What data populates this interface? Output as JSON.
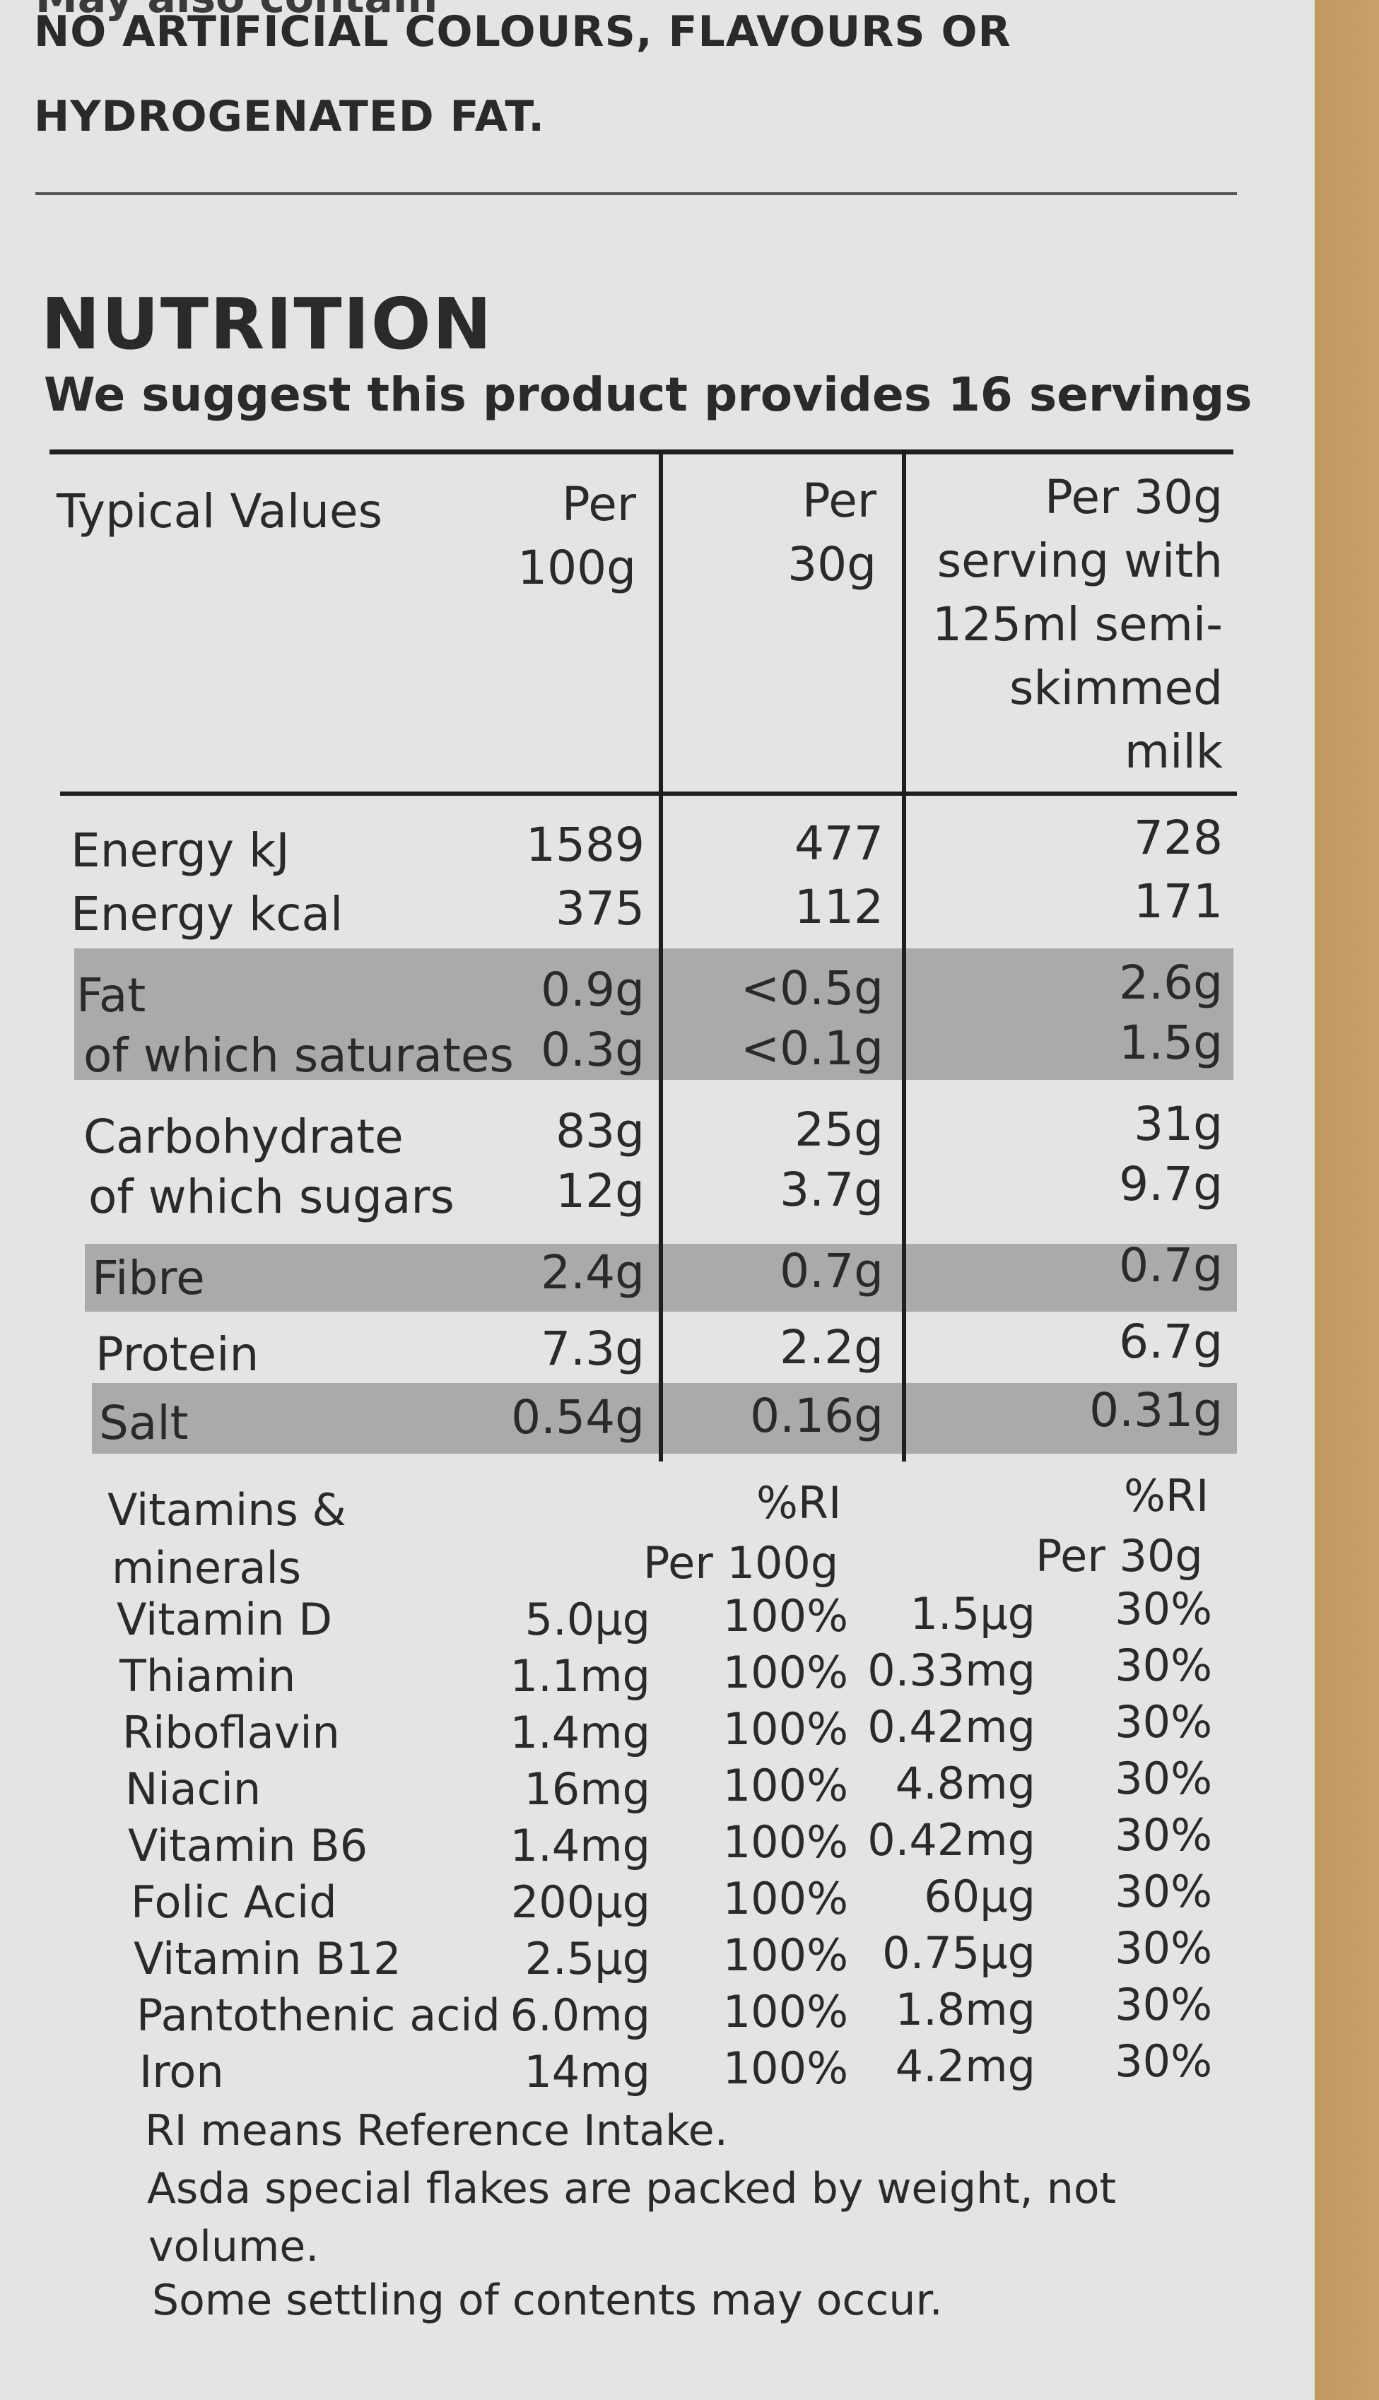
{
  "header": {
    "cut_text": "May also contain",
    "warning_line1": "NO ARTIFICIAL COLOURS, FLAVOURS OR",
    "warning_line2": "HYDROGENATED FAT."
  },
  "nutrition": {
    "title": "NUTRITION",
    "servings": "We suggest this product provides 16 servings",
    "headers": {
      "typical": "Typical Values",
      "per100_1": "Per",
      "per100_2": "100g",
      "per30_1": "Per",
      "per30_2": "30g",
      "milk_1": "Per 30g",
      "milk_2": "serving with",
      "milk_3": "125ml semi-",
      "milk_4": "skimmed",
      "milk_5": "milk"
    },
    "rows": [
      {
        "label": "Energy kJ",
        "per100": "1589",
        "per30": "477",
        "milk": "728"
      },
      {
        "label": "Energy kcal",
        "per100": "375",
        "per30": "112",
        "milk": "171"
      },
      {
        "label": "Fat",
        "per100": "0.9g",
        "per30": "<0.5g",
        "milk": "2.6g"
      },
      {
        "label": "of which saturates",
        "per100": "0.3g",
        "per30": "<0.1g",
        "milk": "1.5g"
      },
      {
        "label": "Carbohydrate",
        "per100": "83g",
        "per30": "25g",
        "milk": "31g"
      },
      {
        "label": "of which sugars",
        "per100": "12g",
        "per30": "3.7g",
        "milk": "9.7g"
      },
      {
        "label": "Fibre",
        "per100": "2.4g",
        "per30": "0.7g",
        "milk": "0.7g"
      },
      {
        "label": "Protein",
        "per100": "7.3g",
        "per30": "2.2g",
        "milk": "6.7g"
      },
      {
        "label": "Salt",
        "per100": "0.54g",
        "per30": "0.16g",
        "milk": "0.31g"
      }
    ],
    "vitamins_header": {
      "label_1": "Vitamins &",
      "label_2": "minerals",
      "ri_1": "%RI",
      "per100": "Per 100g",
      "ri_2": "%RI",
      "per30": "Per 30g"
    },
    "vitamins": [
      {
        "name": "Vitamin D",
        "per100": "5.0µg",
        "ri100": "100%",
        "per30": "1.5µg",
        "ri30": "30%"
      },
      {
        "name": "Thiamin",
        "per100": "1.1mg",
        "ri100": "100%",
        "per30": "0.33mg",
        "ri30": "30%"
      },
      {
        "name": "Riboflavin",
        "per100": "1.4mg",
        "ri100": "100%",
        "per30": "0.42mg",
        "ri30": "30%"
      },
      {
        "name": "Niacin",
        "per100": "16mg",
        "ri100": "100%",
        "per30": "4.8mg",
        "ri30": "30%"
      },
      {
        "name": "Vitamin B6",
        "per100": "1.4mg",
        "ri100": "100%",
        "per30": "0.42mg",
        "ri30": "30%"
      },
      {
        "name": "Folic Acid",
        "per100": "200µg",
        "ri100": "100%",
        "per30": "60µg",
        "ri30": "30%"
      },
      {
        "name": "Vitamin B12",
        "per100": "2.5µg",
        "ri100": "100%",
        "per30": "0.75µg",
        "ri30": "30%"
      },
      {
        "name": "Pantothenic acid",
        "per100": "6.0mg",
        "ri100": "100%",
        "per30": "1.8mg",
        "ri30": "30%"
      },
      {
        "name": "Iron",
        "per100": "14mg",
        "ri100": "100%",
        "per30": "4.2mg",
        "ri30": "30%"
      }
    ],
    "footer": {
      "ri_note": "RI means Reference Intake.",
      "packed_1": "Asda special flakes are packed by weight, not",
      "packed_2": "volume.",
      "settling": "Some settling of contents may occur."
    }
  }
}
